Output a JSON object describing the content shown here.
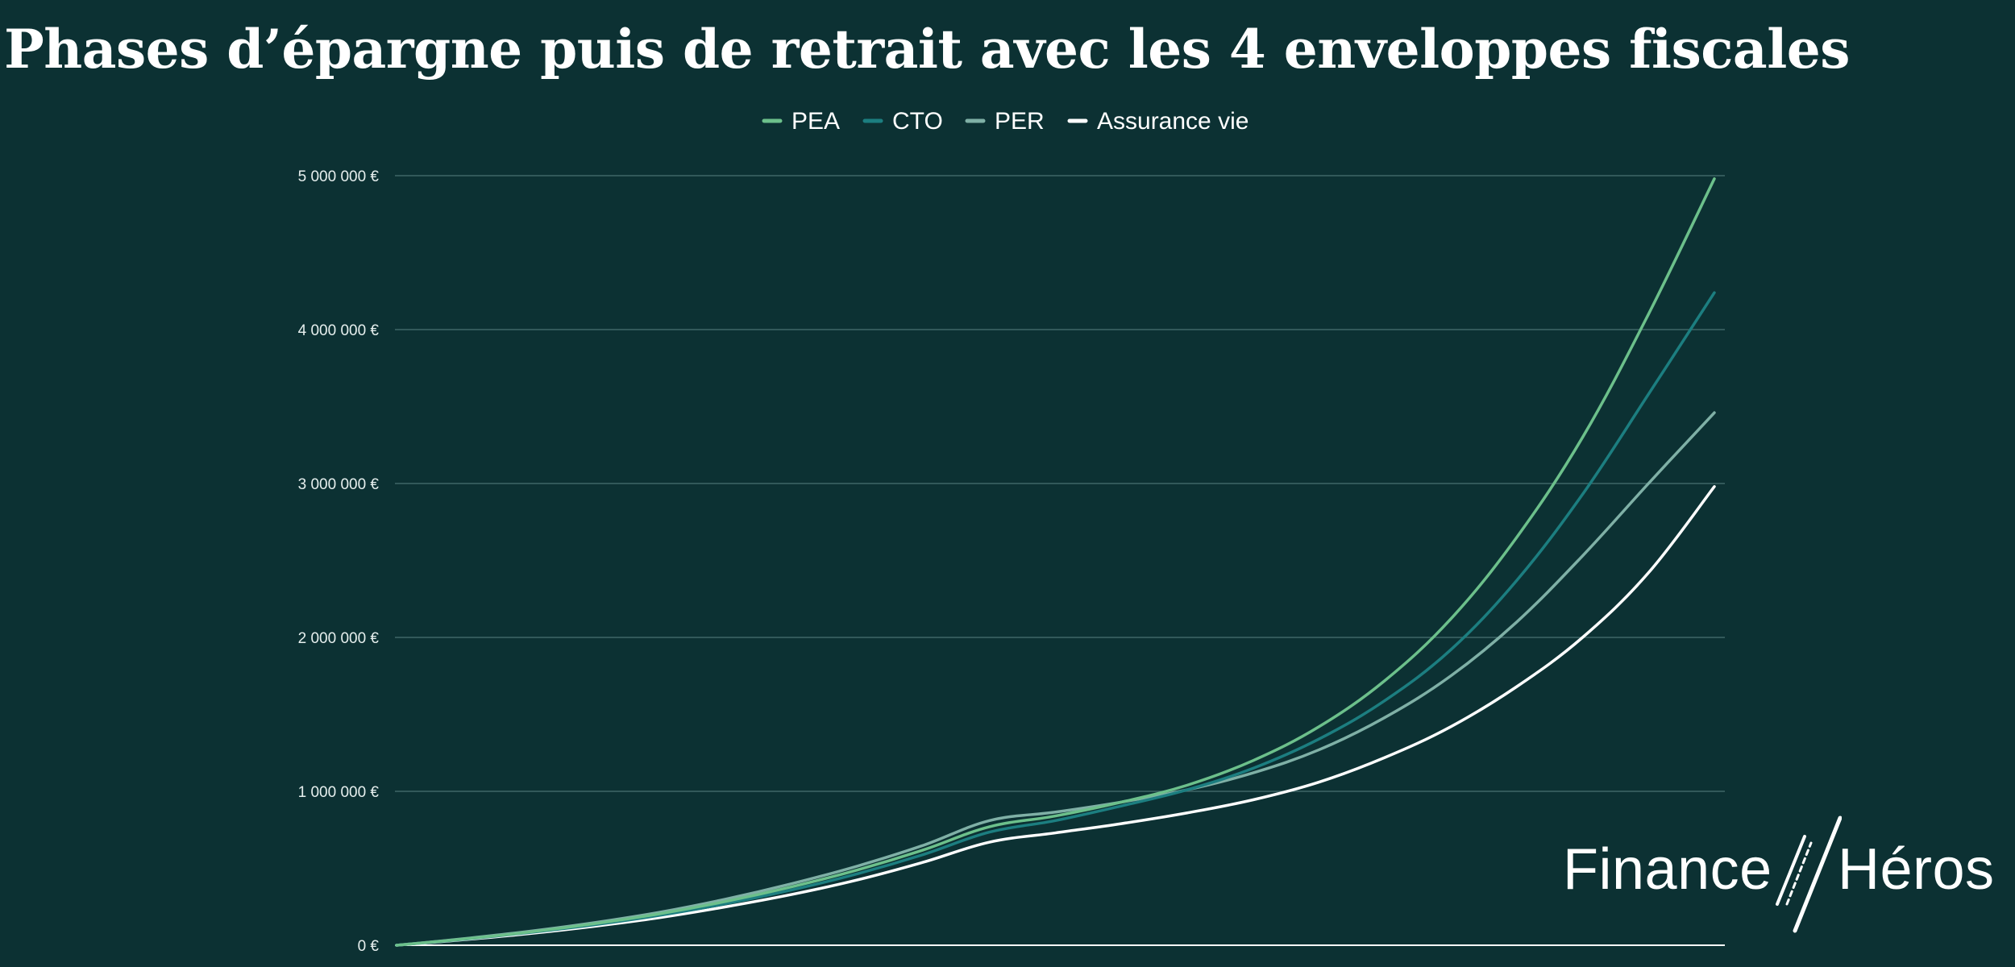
{
  "header": {
    "title": "Phases d’épargne puis de retrait avec les 4 enveloppes fiscales"
  },
  "brand": {
    "left": "Finance",
    "right": "Héros"
  },
  "chart_data": {
    "type": "line",
    "title": "Phases d’épargne puis de retrait avec les 4 enveloppes fiscales",
    "xlabel": "",
    "ylabel": "",
    "ylim": [
      0,
      5000000
    ],
    "y_ticks": [
      0,
      1000000,
      2000000,
      3000000,
      4000000,
      5000000
    ],
    "y_tick_labels": [
      "0 €",
      "1 000 000 €",
      "2 000 000 €",
      "3 000 000 €",
      "4 000 000 €",
      "5 000 000 €"
    ],
    "grid": true,
    "legend": "top-center",
    "x": [
      0,
      5,
      10,
      15,
      20,
      25,
      30,
      35,
      40,
      45,
      50,
      55,
      60,
      65,
      70,
      75,
      80,
      85,
      90,
      95,
      100
    ],
    "series": [
      {
        "name": "PEA",
        "color": "#6cc08b",
        "values": [
          0,
          40000,
          85000,
          140000,
          205000,
          285000,
          380000,
          490000,
          620000,
          770000,
          840000,
          930000,
          1040000,
          1200000,
          1420000,
          1720000,
          2120000,
          2650000,
          3300000,
          4100000,
          4980000
        ]
      },
      {
        "name": "CTO",
        "color": "#1c7e80",
        "values": [
          0,
          38000,
          82000,
          133000,
          195000,
          270000,
          360000,
          465000,
          590000,
          735000,
          810000,
          905000,
          1010000,
          1150000,
          1340000,
          1590000,
          1920000,
          2370000,
          2930000,
          3580000,
          4240000
        ]
      },
      {
        "name": "PER",
        "color": "#7fb0a6",
        "values": [
          0,
          42000,
          90000,
          147000,
          215000,
          300000,
          400000,
          515000,
          650000,
          810000,
          865000,
          930000,
          1010000,
          1120000,
          1270000,
          1480000,
          1750000,
          2100000,
          2530000,
          3000000,
          3460000
        ]
      },
      {
        "name": "Assurance vie",
        "color": "#ffffff",
        "values": [
          0,
          35000,
          75000,
          123000,
          180000,
          250000,
          330000,
          425000,
          540000,
          670000,
          730000,
          790000,
          860000,
          945000,
          1060000,
          1220000,
          1420000,
          1680000,
          2000000,
          2420000,
          2980000
        ]
      }
    ]
  }
}
